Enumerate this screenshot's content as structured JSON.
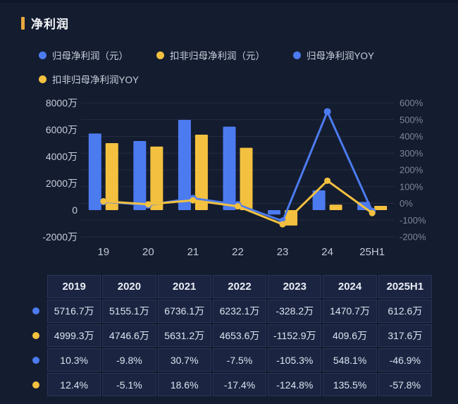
{
  "title": {
    "text": "净利润"
  },
  "legend": {
    "items": [
      {
        "label": "归母净利润（元）",
        "color": "#4C7BF0",
        "row": 0
      },
      {
        "label": "扣非归母净利润（元）",
        "color": "#F3C13F",
        "row": 0
      },
      {
        "label": "归母净利润YOY",
        "color": "#4C7BF0",
        "row": 0
      },
      {
        "label": "扣非归母净利润YOY",
        "color": "#F3C13F",
        "row": 1
      }
    ]
  },
  "chart_data": {
    "type": "combo-bar-line",
    "title": "净利润",
    "categories": [
      "19",
      "20",
      "21",
      "22",
      "23",
      "24",
      "25H1"
    ],
    "bar_series": [
      {
        "name": "归母净利润（元）",
        "color": "#4C7BF0",
        "unit": "万",
        "values": [
          5716.7,
          5155.1,
          6736.1,
          6232.1,
          -328.2,
          1470.7,
          612.6
        ]
      },
      {
        "name": "扣非归母净利润（元）",
        "color": "#F3C13F",
        "unit": "万",
        "values": [
          4999.3,
          4746.6,
          5631.2,
          4653.6,
          -1152.9,
          409.6,
          317.6
        ]
      }
    ],
    "line_series": [
      {
        "name": "归母净利润YOY",
        "color": "#4C7BF0",
        "unit": "%",
        "values": [
          10.3,
          -9.8,
          30.7,
          -7.5,
          -105.3,
          548.1,
          -46.9
        ]
      },
      {
        "name": "扣非归母净利润YOY",
        "color": "#F3C13F",
        "unit": "%",
        "values": [
          12.4,
          -5.1,
          18.6,
          -17.4,
          -124.8,
          135.5,
          -57.8
        ]
      }
    ],
    "left_axis": {
      "ticks": [
        "8000万",
        "6000万",
        "4000万",
        "2000万",
        "0",
        "-2000万"
      ],
      "max": 8000,
      "min": -2000
    },
    "right_axis": {
      "ticks": [
        "600%",
        "500%",
        "400%",
        "300%",
        "200%",
        "100%",
        "0%",
        "-100%",
        "-200%"
      ],
      "max": 600,
      "min": -200
    },
    "grid": true,
    "legend_position": "top"
  },
  "table": {
    "headers": [
      "2019",
      "2020",
      "2021",
      "2022",
      "2023",
      "2024",
      "2025H1"
    ],
    "rows": [
      {
        "marker_color": "#4C7BF0",
        "cells": [
          "5716.7万",
          "5155.1万",
          "6736.1万",
          "6232.1万",
          "-328.2万",
          "1470.7万",
          "612.6万"
        ]
      },
      {
        "marker_color": "#F3C13F",
        "cells": [
          "4999.3万",
          "4746.6万",
          "5631.2万",
          "4653.6万",
          "-1152.9万",
          "409.6万",
          "317.6万"
        ]
      },
      {
        "marker_color": "#4C7BF0",
        "cells": [
          "10.3%",
          "-9.8%",
          "30.7%",
          "-7.5%",
          "-105.3%",
          "548.1%",
          "-46.9%"
        ]
      },
      {
        "marker_color": "#F3C13F",
        "cells": [
          "12.4%",
          "-5.1%",
          "18.6%",
          "-17.4%",
          "-124.8%",
          "135.5%",
          "-57.8%"
        ]
      }
    ]
  },
  "colors": {
    "background": "#141C2F",
    "accent_bar": "#E8A83E",
    "bar_blue": "#4C7BF0",
    "bar_yellow": "#F3C13F",
    "grid_line": "rgba(255,255,255,0.07)",
    "axis_left_text": "#C6CCD9",
    "axis_right_text": "#7E879B",
    "axis_x_text": "#C3C9D6",
    "table_cell_bg": "#1B2542",
    "table_text": "#DDE3EE"
  }
}
